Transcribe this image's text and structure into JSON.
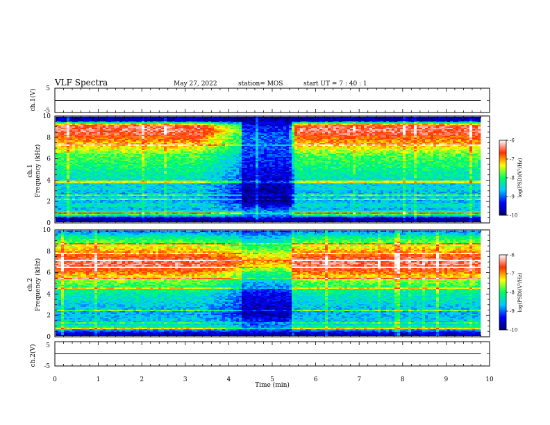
{
  "header": {
    "title": "VLF Spectra",
    "date": "May 27, 2022",
    "station": "station= MOS",
    "start": "start  UT  =   7 : 40 : 1"
  },
  "axes": {
    "xlabel": "Time  (min)",
    "ch1_voltage_label": "ch.1(V)",
    "ch2_voltage_label": "ch.2(V)",
    "ch1_spec_label": "ch.1",
    "ch2_spec_label": "ch.2",
    "freq_label": "Frequency  (kHz)",
    "colorbar_label": "log(PSD)(V²/Hz)"
  },
  "chart_data": [
    {
      "type": "line",
      "name": "ch1-voltage",
      "ylabel": "ch.1(V)",
      "xlim": [
        0,
        10
      ],
      "ylim": [
        -5,
        5
      ],
      "yticks": [
        "5",
        "-5"
      ],
      "x": [
        0,
        9.8
      ],
      "y": [
        0,
        0
      ]
    },
    {
      "type": "heatmap",
      "name": "ch1-spectrogram",
      "ylabel": "ch.1  Frequency  (kHz)",
      "xlim": [
        0,
        10
      ],
      "ylim": [
        0,
        10
      ],
      "xticks": [
        "0",
        "1",
        "2",
        "3",
        "4",
        "5",
        "6",
        "7",
        "8",
        "9",
        "10"
      ],
      "yticks": [
        "0",
        "2",
        "4",
        "6",
        "8",
        "10"
      ],
      "colorbar": {
        "label": "log(PSD)(V²/Hz)",
        "range": [
          -10,
          -6
        ],
        "ticks": [
          "-6",
          "-7",
          "-8",
          "-9",
          "-10"
        ]
      },
      "data_end_min": 9.8,
      "quiet_interval_min": [
        4.3,
        5.4
      ],
      "background_rows": [
        {
          "f": 10.0,
          "v": -9.8
        },
        {
          "f": 9.6,
          "v": -9.6
        },
        {
          "f": 9.2,
          "v": -6.5
        },
        {
          "f": 8.8,
          "v": -6.4
        },
        {
          "f": 8.4,
          "v": -6.5
        },
        {
          "f": 8.0,
          "v": -6.8
        },
        {
          "f": 7.6,
          "v": -7.0
        },
        {
          "f": 7.2,
          "v": -7.2
        },
        {
          "f": 6.8,
          "v": -7.5
        },
        {
          "f": 6.4,
          "v": -7.8
        },
        {
          "f": 6.0,
          "v": -7.9
        },
        {
          "f": 5.6,
          "v": -8.0
        },
        {
          "f": 5.2,
          "v": -8.1
        },
        {
          "f": 4.8,
          "v": -8.2
        },
        {
          "f": 4.4,
          "v": -8.3
        },
        {
          "f": 4.0,
          "v": -8.4
        },
        {
          "f": 3.6,
          "v": -8.6
        },
        {
          "f": 3.2,
          "v": -8.5
        },
        {
          "f": 2.8,
          "v": -8.7
        },
        {
          "f": 2.4,
          "v": -8.6
        },
        {
          "f": 2.0,
          "v": -8.7
        },
        {
          "f": 1.6,
          "v": -8.4
        },
        {
          "f": 1.2,
          "v": -8.8
        },
        {
          "f": 0.8,
          "v": -7.5
        },
        {
          "f": 0.4,
          "v": -9.7
        },
        {
          "f": 0.0,
          "v": -9.8
        }
      ],
      "quiet_rows": [
        {
          "f": 10.0,
          "v": -10.0
        },
        {
          "f": 9.0,
          "v": -9.3
        },
        {
          "f": 8.0,
          "v": -9.0
        },
        {
          "f": 6.0,
          "v": -9.2
        },
        {
          "f": 4.0,
          "v": -9.6
        },
        {
          "f": 2.0,
          "v": -9.9
        },
        {
          "f": 0.8,
          "v": -8.6
        },
        {
          "f": 0.0,
          "v": -10.0
        }
      ]
    },
    {
      "type": "heatmap",
      "name": "ch2-spectrogram",
      "ylabel": "ch.2  Frequency  (kHz)",
      "xlim": [
        0,
        10
      ],
      "ylim": [
        0,
        10
      ],
      "xticks": [
        "0",
        "1",
        "2",
        "3",
        "4",
        "5",
        "6",
        "7",
        "8",
        "9",
        "10"
      ],
      "yticks": [
        "0",
        "2",
        "4",
        "6",
        "8",
        "10"
      ],
      "colorbar": {
        "label": "log(PSD)(V²/Hz)",
        "range": [
          -10,
          -6
        ],
        "ticks": [
          "-6",
          "-7",
          "-8",
          "-9",
          "-10"
        ]
      },
      "data_end_min": 9.8,
      "quiet_interval_min": [
        4.3,
        5.4
      ],
      "background_rows": [
        {
          "f": 10.0,
          "v": -9.0
        },
        {
          "f": 9.6,
          "v": -8.5
        },
        {
          "f": 9.2,
          "v": -8.0
        },
        {
          "f": 8.8,
          "v": -7.7
        },
        {
          "f": 8.4,
          "v": -7.3
        },
        {
          "f": 8.0,
          "v": -7.0
        },
        {
          "f": 7.6,
          "v": -6.7
        },
        {
          "f": 7.2,
          "v": -6.5
        },
        {
          "f": 6.8,
          "v": -6.4
        },
        {
          "f": 6.4,
          "v": -6.6
        },
        {
          "f": 6.0,
          "v": -6.9
        },
        {
          "f": 5.6,
          "v": -7.3
        },
        {
          "f": 5.2,
          "v": -7.7
        },
        {
          "f": 4.8,
          "v": -7.9
        },
        {
          "f": 4.4,
          "v": -8.1
        },
        {
          "f": 4.0,
          "v": -8.3
        },
        {
          "f": 3.6,
          "v": -8.4
        },
        {
          "f": 3.2,
          "v": -8.5
        },
        {
          "f": 2.8,
          "v": -8.6
        },
        {
          "f": 2.4,
          "v": -8.7
        },
        {
          "f": 2.0,
          "v": -8.7
        },
        {
          "f": 1.6,
          "v": -8.6
        },
        {
          "f": 1.2,
          "v": -8.6
        },
        {
          "f": 0.8,
          "v": -8.0
        },
        {
          "f": 0.4,
          "v": -9.4
        },
        {
          "f": 0.0,
          "v": -9.8
        }
      ],
      "quiet_rows": [
        {
          "f": 10.0,
          "v": -9.2
        },
        {
          "f": 8.0,
          "v": -7.6
        },
        {
          "f": 7.0,
          "v": -7.0
        },
        {
          "f": 6.0,
          "v": -8.0
        },
        {
          "f": 4.0,
          "v": -9.4
        },
        {
          "f": 2.0,
          "v": -9.7
        },
        {
          "f": 0.8,
          "v": -8.8
        },
        {
          "f": 0.0,
          "v": -10.0
        }
      ]
    },
    {
      "type": "line",
      "name": "ch2-voltage",
      "ylabel": "ch.2(V)",
      "xlabel": "Time  (min)",
      "xlim": [
        0,
        10
      ],
      "ylim": [
        -5,
        5
      ],
      "yticks": [
        "5",
        "-5"
      ],
      "x": [
        0,
        9.8
      ],
      "y": [
        0,
        0
      ]
    }
  ],
  "colors": {
    "colormap": [
      "#000070",
      "#0000ff",
      "#00c8ff",
      "#00ff60",
      "#ffff00",
      "#ff3000",
      "#ffffff"
    ]
  }
}
